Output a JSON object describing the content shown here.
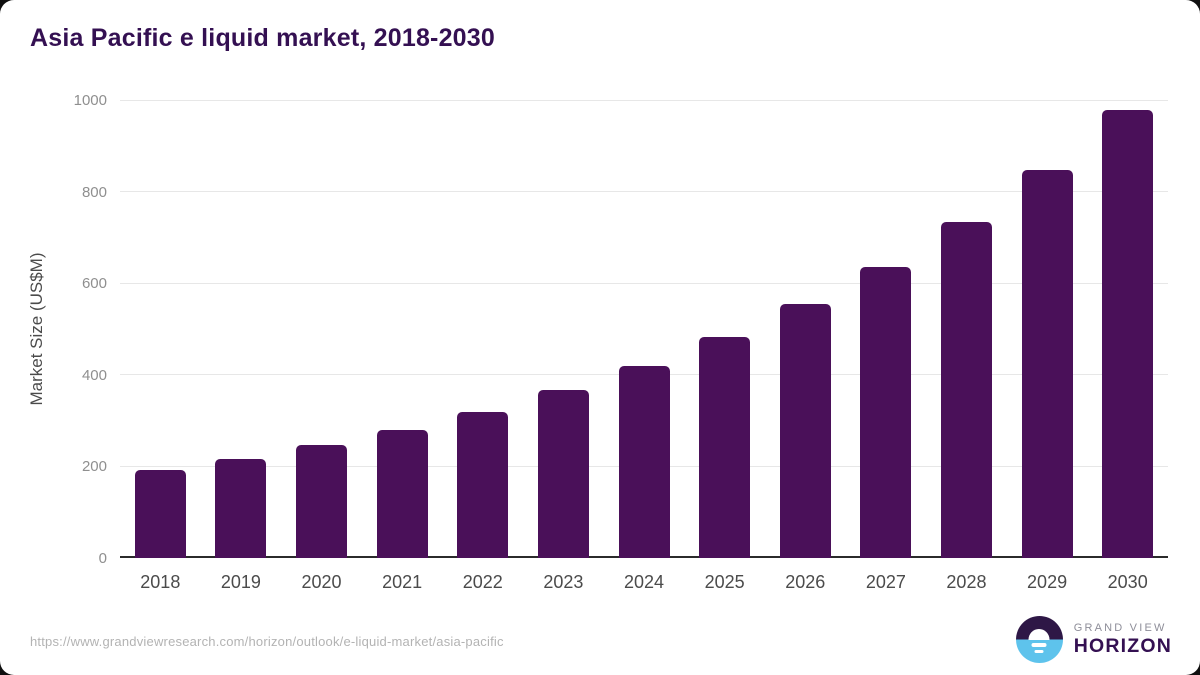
{
  "chart_data": {
    "type": "bar",
    "title": "Asia Pacific e liquid market, 2018-2030",
    "categories": [
      "2018",
      "2019",
      "2020",
      "2021",
      "2022",
      "2023",
      "2024",
      "2025",
      "2026",
      "2027",
      "2028",
      "2029",
      "2030"
    ],
    "values": [
      192,
      217,
      246,
      280,
      318,
      366,
      420,
      482,
      554,
      636,
      733,
      847,
      979
    ],
    "xlabel": "",
    "ylabel": "Market Size (US$M)",
    "ylim": [
      0,
      1000
    ],
    "yticks": [
      0,
      200,
      400,
      600,
      800,
      1000
    ],
    "grid": true,
    "legend_position": "none",
    "bar_color": "#4a1059"
  },
  "footer": {
    "source_url": "https://www.grandviewresearch.com/horizon/outlook/e-liquid-market/asia-pacific",
    "logo": {
      "top_text": "GRAND VIEW",
      "bottom_text": "HORIZON"
    }
  },
  "colors": {
    "bar": "#4a1059",
    "title_text": "#341052",
    "axis_label": "#4b4b4b",
    "tick_label": "#8f8f8f",
    "gridline": "#e7e7e7",
    "baseline": "#2b2b2b",
    "url_text": "#b3b3b3",
    "logo_blue": "#5ec3ec",
    "logo_dark_purple": "#2e1746",
    "logo_gray_text": "#8e8e99"
  }
}
